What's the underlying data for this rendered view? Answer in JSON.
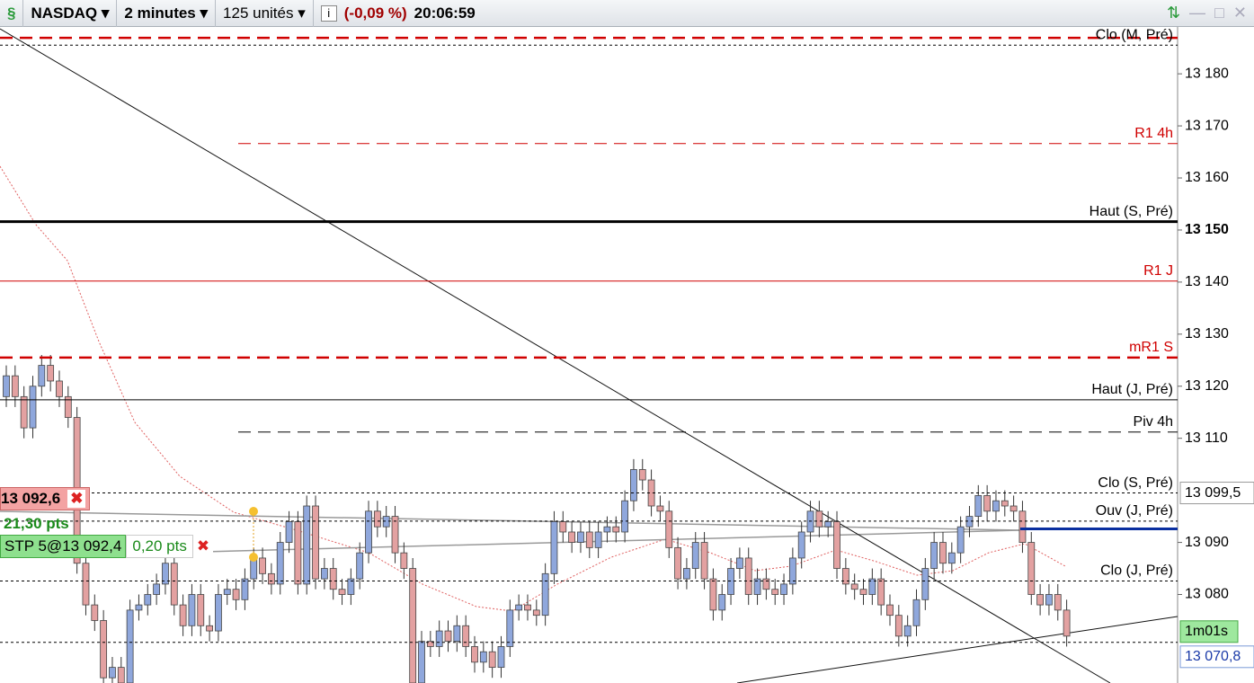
{
  "toolbar": {
    "instrument": "NASDAQ",
    "period": "2 minutes",
    "size": "125 unités",
    "change": "(-0,09 %)",
    "time": "20:06:59"
  },
  "orders": {
    "price_label": "13 092,6",
    "pl": "21,30 pts",
    "stop_label": "STP 5@13 092,4",
    "stop_distance": "0,20 pts"
  },
  "chart_data": {
    "type": "candlestick",
    "open": [
      13118,
      13122,
      13118,
      13112,
      13120,
      13124,
      13121,
      13118,
      13114,
      13086,
      13078,
      13075,
      13064,
      13066,
      13063,
      13077,
      13078,
      13080,
      13082,
      13086,
      13078,
      13074,
      13080,
      13074,
      13073,
      13080,
      13081,
      13079,
      13083,
      13087,
      13084,
      13082,
      13090,
      13094,
      13082,
      13097,
      13083,
      13085,
      13081,
      13080,
      13083,
      13088,
      13096,
      13093,
      13095,
      13088,
      13085,
      13063,
      13071,
      13070,
      13073,
      13071,
      13074,
      13070,
      13067,
      13069,
      13066,
      13070,
      13077,
      13078,
      13077,
      13076,
      13084,
      13094,
      13092,
      13090,
      13092,
      13089,
      13092,
      13093,
      13092,
      13098,
      13104,
      13102,
      13097,
      13096,
      13089,
      13083,
      13085,
      13090,
      13083,
      13077,
      13080,
      13085,
      13087,
      13080,
      13083,
      13081,
      13080,
      13082,
      13087,
      13092,
      13096,
      13093,
      13094,
      13085,
      13082,
      13081,
      13080,
      13083,
      13078,
      13076,
      13072,
      13074,
      13079,
      13085,
      13090,
      13086,
      13088,
      13093,
      13095,
      13099,
      13096,
      13098,
      13097,
      13096,
      13090,
      13080,
      13078,
      13080,
      13077
    ],
    "high": [
      13124,
      13124,
      13120,
      13122,
      13126,
      13126,
      13123,
      13120,
      13116,
      13088,
      13080,
      13077,
      13068,
      13068,
      13079,
      13080,
      13082,
      13084,
      13088,
      13088,
      13080,
      13082,
      13082,
      13076,
      13082,
      13083,
      13083,
      13085,
      13089,
      13089,
      13086,
      13092,
      13096,
      13096,
      13099,
      13099,
      13087,
      13087,
      13083,
      13085,
      13090,
      13098,
      13098,
      13097,
      13097,
      13090,
      13087,
      13073,
      13073,
      13075,
      13075,
      13076,
      13076,
      13072,
      13071,
      13071,
      13072,
      13079,
      13080,
      13080,
      13079,
      13086,
      13096,
      13096,
      13094,
      13094,
      13094,
      13094,
      13095,
      13095,
      13100,
      13106,
      13106,
      13104,
      13099,
      13098,
      13091,
      13087,
      13092,
      13092,
      13085,
      13082,
      13087,
      13089,
      13089,
      13085,
      13085,
      13083,
      13084,
      13089,
      13094,
      13098,
      13098,
      13096,
      13096,
      13087,
      13084,
      13083,
      13085,
      13085,
      13080,
      13078,
      13076,
      13081,
      13087,
      13092,
      13092,
      13090,
      13095,
      13097,
      13101,
      13101,
      13100,
      13100,
      13099,
      13098,
      13092,
      13082,
      13082,
      13082,
      13079
    ],
    "low": [
      13116,
      13116,
      13110,
      13110,
      13118,
      13119,
      13116,
      13112,
      13084,
      13076,
      13073,
      13062,
      13062,
      13061,
      13061,
      13075,
      13076,
      13078,
      13080,
      13076,
      13072,
      13072,
      13072,
      13071,
      13071,
      13078,
      13077,
      13077,
      13081,
      13082,
      13080,
      13080,
      13088,
      13080,
      13080,
      13081,
      13081,
      13079,
      13078,
      13078,
      13081,
      13086,
      13091,
      13091,
      13086,
      13083,
      13061,
      13061,
      13068,
      13068,
      13069,
      13069,
      13068,
      13065,
      13065,
      13064,
      13064,
      13068,
      13075,
      13075,
      13074,
      13074,
      13082,
      13090,
      13088,
      13088,
      13087,
      13087,
      13090,
      13090,
      13090,
      13096,
      13100,
      13095,
      13094,
      13087,
      13081,
      13081,
      13083,
      13081,
      13075,
      13075,
      13078,
      13083,
      13078,
      13078,
      13079,
      13078,
      13078,
      13080,
      13085,
      13090,
      13091,
      13091,
      13083,
      13080,
      13079,
      13078,
      13078,
      13076,
      13074,
      13070,
      13070,
      13072,
      13077,
      13083,
      13084,
      13084,
      13086,
      13091,
      13093,
      13094,
      13094,
      13095,
      13094,
      13088,
      13078,
      13076,
      13076,
      13075,
      13070
    ],
    "close": [
      13122,
      13118,
      13112,
      13120,
      13124,
      13121,
      13118,
      13114,
      13086,
      13078,
      13075,
      13064,
      13066,
      13063,
      13077,
      13078,
      13080,
      13082,
      13086,
      13078,
      13074,
      13080,
      13074,
      13073,
      13080,
      13081,
      13079,
      13083,
      13087,
      13084,
      13082,
      13090,
      13094,
      13082,
      13097,
      13083,
      13085,
      13081,
      13080,
      13083,
      13088,
      13096,
      13093,
      13095,
      13088,
      13085,
      13063,
      13071,
      13070,
      13073,
      13071,
      13074,
      13070,
      13067,
      13069,
      13066,
      13070,
      13077,
      13078,
      13077,
      13076,
      13084,
      13094,
      13092,
      13090,
      13092,
      13089,
      13092,
      13093,
      13092,
      13098,
      13104,
      13102,
      13097,
      13096,
      13089,
      13083,
      13085,
      13090,
      13083,
      13077,
      13080,
      13085,
      13087,
      13080,
      13083,
      13081,
      13080,
      13082,
      13087,
      13092,
      13096,
      13093,
      13094,
      13085,
      13082,
      13081,
      13080,
      13083,
      13078,
      13076,
      13072,
      13074,
      13079,
      13085,
      13090,
      13086,
      13088,
      13093,
      13095,
      13099,
      13096,
      13098,
      13097,
      13096,
      13090,
      13080,
      13078,
      13080,
      13077,
      13072
    ],
    "up_color": "#8fa7dc",
    "down_color": "#e3a1a1",
    "ylim": [
      13063,
      13189
    ],
    "yticks": [
      {
        "value": 13080,
        "label": "13 080"
      },
      {
        "value": 13090,
        "label": "13 090"
      },
      {
        "value": 13110,
        "label": "13 110"
      },
      {
        "value": 13120,
        "label": "13 120"
      },
      {
        "value": 13130,
        "label": "13 130"
      },
      {
        "value": 13140,
        "label": "13 140"
      },
      {
        "value": 13150,
        "label": "13 150"
      },
      {
        "value": 13160,
        "label": "13 160"
      },
      {
        "value": 13170,
        "label": "13 170"
      },
      {
        "value": 13180,
        "label": "13 180"
      }
    ],
    "bold_tick": 13150,
    "levels": [
      {
        "value": 13186.9,
        "color": "#d00000",
        "style": "dash",
        "width": 2.5,
        "extent": "full"
      },
      {
        "name": "Clo (M, Pré)",
        "value": 13185.5,
        "color": "#000000",
        "style": "dot",
        "width": 1,
        "extent": "full"
      },
      {
        "name": "R1 4h",
        "value": 13166.6,
        "color": "#d00000",
        "style": "dash",
        "width": 1,
        "extent": "4h"
      },
      {
        "name": "Haut (S, Pré)",
        "value": 13151.6,
        "color": "#000000",
        "style": "solid",
        "width": 3,
        "extent": "full"
      },
      {
        "name": "R1 J",
        "value": 13140.2,
        "color": "#d00000",
        "style": "solid",
        "width": 1,
        "extent": "full"
      },
      {
        "name": "mR1 S",
        "value": 13125.5,
        "color": "#d00000",
        "style": "dash",
        "width": 2.5,
        "extent": "full"
      },
      {
        "name": "Haut (J, Pré)",
        "value": 13117.4,
        "color": "#000000",
        "style": "solid",
        "width": 1,
        "extent": "full"
      },
      {
        "name": "Piv 4h",
        "value": 13111.2,
        "color": "#000000",
        "style": "dash",
        "width": 1,
        "extent": "4h"
      },
      {
        "name": "Clo (S, Pré)",
        "value": 13099.5,
        "value_label": "13 099,5",
        "color": "#000000",
        "style": "dot",
        "width": 1,
        "extent": "full"
      },
      {
        "name": "Ouv (J, Pré)",
        "value": 13094.1,
        "color": "#000000",
        "style": "dot",
        "width": 1,
        "extent": "full"
      },
      {
        "value": 13092.6,
        "color": "#0a2fa0",
        "style": "solid",
        "width": 3,
        "extent": "right"
      },
      {
        "name": "Clo (J, Pré)",
        "value": 13082.6,
        "color": "#000000",
        "style": "dot",
        "width": 1,
        "extent": "full"
      },
      {
        "value": 13070.8,
        "value_label": "13 070,8",
        "timer": "1m01s",
        "color": "#000000",
        "style": "dot",
        "width": 1,
        "extent": "full"
      }
    ]
  }
}
